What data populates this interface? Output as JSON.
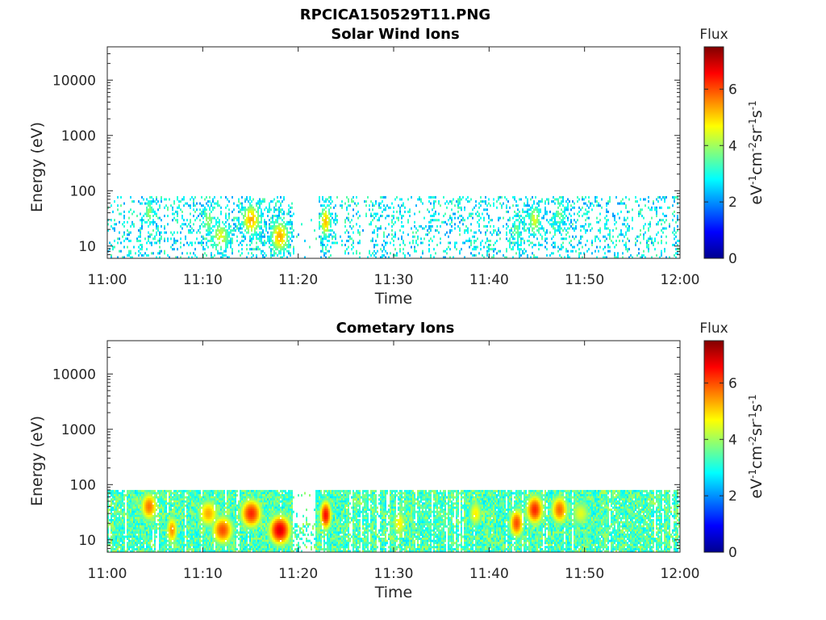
{
  "figure": {
    "title": "RPCICA150529T11.PNG",
    "colors": {
      "axis": "#262626",
      "cmap": "jet",
      "nodata": "#ffffff"
    }
  },
  "chart_data": [
    {
      "type": "heatmap",
      "title": "Solar Wind Ions",
      "xlabel": "Time",
      "ylabel": "Energy (eV)",
      "xlim": [
        "11:00",
        "12:00"
      ],
      "xticks": [
        "11:00",
        "11:10",
        "11:20",
        "11:30",
        "11:40",
        "11:50",
        "12:00"
      ],
      "ylim": [
        6,
        40000
      ],
      "yscale": "log",
      "yticks": [
        "10",
        "100",
        "1000",
        "10000"
      ],
      "colorbar": {
        "label": "Flux",
        "unit": "eV-1cm-2sr-1s-1",
        "range": [
          0,
          7.5
        ],
        "ticks": [
          "0",
          "2",
          "4",
          "6"
        ]
      },
      "energy_range_eV": [
        6,
        80
      ],
      "density": 0.22,
      "mean_flux": 2.8,
      "features": [
        {
          "minute": 4.3,
          "width_min": 0.6,
          "peak_eV": 40,
          "flux": 4.0
        },
        {
          "minute": 10.5,
          "width_min": 0.8,
          "peak_eV": 30,
          "flux": 4.0
        },
        {
          "minute": 11.8,
          "width_min": 1.2,
          "peak_eV": 15,
          "flux": 4.5
        },
        {
          "minute": 15.0,
          "width_min": 1.2,
          "peak_eV": 30,
          "flux": 5.3
        },
        {
          "minute": 18.0,
          "width_min": 1.2,
          "peak_eV": 15,
          "flux": 5.3
        },
        {
          "minute": 22.8,
          "width_min": 0.7,
          "peak_eV": 28,
          "flux": 5.2
        },
        {
          "minute": 42.8,
          "width_min": 0.5,
          "peak_eV": 20,
          "flux": 3.8
        },
        {
          "minute": 44.7,
          "width_min": 0.8,
          "peak_eV": 30,
          "flux": 4.5
        },
        {
          "minute": 47.3,
          "width_min": 0.8,
          "peak_eV": 40,
          "flux": 3.8
        }
      ],
      "gaps": [
        [
          19.5,
          22.0
        ]
      ]
    },
    {
      "type": "heatmap",
      "title": "Cometary Ions",
      "xlabel": "Time",
      "ylabel": "Energy (eV)",
      "xlim": [
        "11:00",
        "12:00"
      ],
      "xticks": [
        "11:00",
        "11:10",
        "11:20",
        "11:30",
        "11:40",
        "11:50",
        "12:00"
      ],
      "ylim": [
        6,
        40000
      ],
      "yscale": "log",
      "yticks": [
        "10",
        "100",
        "1000",
        "10000"
      ],
      "colorbar": {
        "label": "Flux",
        "unit": "eV-1cm-2sr-1s-1",
        "range": [
          0,
          7.5
        ],
        "ticks": [
          "0",
          "2",
          "4",
          "6"
        ]
      },
      "energy_range_eV": [
        6,
        80
      ],
      "density": 0.93,
      "mean_flux": 3.4,
      "features": [
        {
          "minute": 4.3,
          "width_min": 1.2,
          "peak_eV": 40,
          "flux": 5.7
        },
        {
          "minute": 6.7,
          "width_min": 0.8,
          "peak_eV": 15,
          "flux": 5.5
        },
        {
          "minute": 10.5,
          "width_min": 1.5,
          "peak_eV": 30,
          "flux": 5.3
        },
        {
          "minute": 12.0,
          "width_min": 1.5,
          "peak_eV": 15,
          "flux": 6.0
        },
        {
          "minute": 15.0,
          "width_min": 1.5,
          "peak_eV": 30,
          "flux": 6.3
        },
        {
          "minute": 18.0,
          "width_min": 1.5,
          "peak_eV": 15,
          "flux": 6.8
        },
        {
          "minute": 22.8,
          "width_min": 0.8,
          "peak_eV": 28,
          "flux": 6.5
        },
        {
          "minute": 30.5,
          "width_min": 1.0,
          "peak_eV": 20,
          "flux": 4.8
        },
        {
          "minute": 38.5,
          "width_min": 1.0,
          "peak_eV": 30,
          "flux": 4.8
        },
        {
          "minute": 42.8,
          "width_min": 1.0,
          "peak_eV": 20,
          "flux": 6.0
        },
        {
          "minute": 44.7,
          "width_min": 1.2,
          "peak_eV": 35,
          "flux": 6.3
        },
        {
          "minute": 47.3,
          "width_min": 1.2,
          "peak_eV": 35,
          "flux": 5.8
        },
        {
          "minute": 49.5,
          "width_min": 1.5,
          "peak_eV": 30,
          "flux": 4.5
        }
      ],
      "gaps": [
        [
          19.3,
          21.8
        ]
      ]
    }
  ]
}
